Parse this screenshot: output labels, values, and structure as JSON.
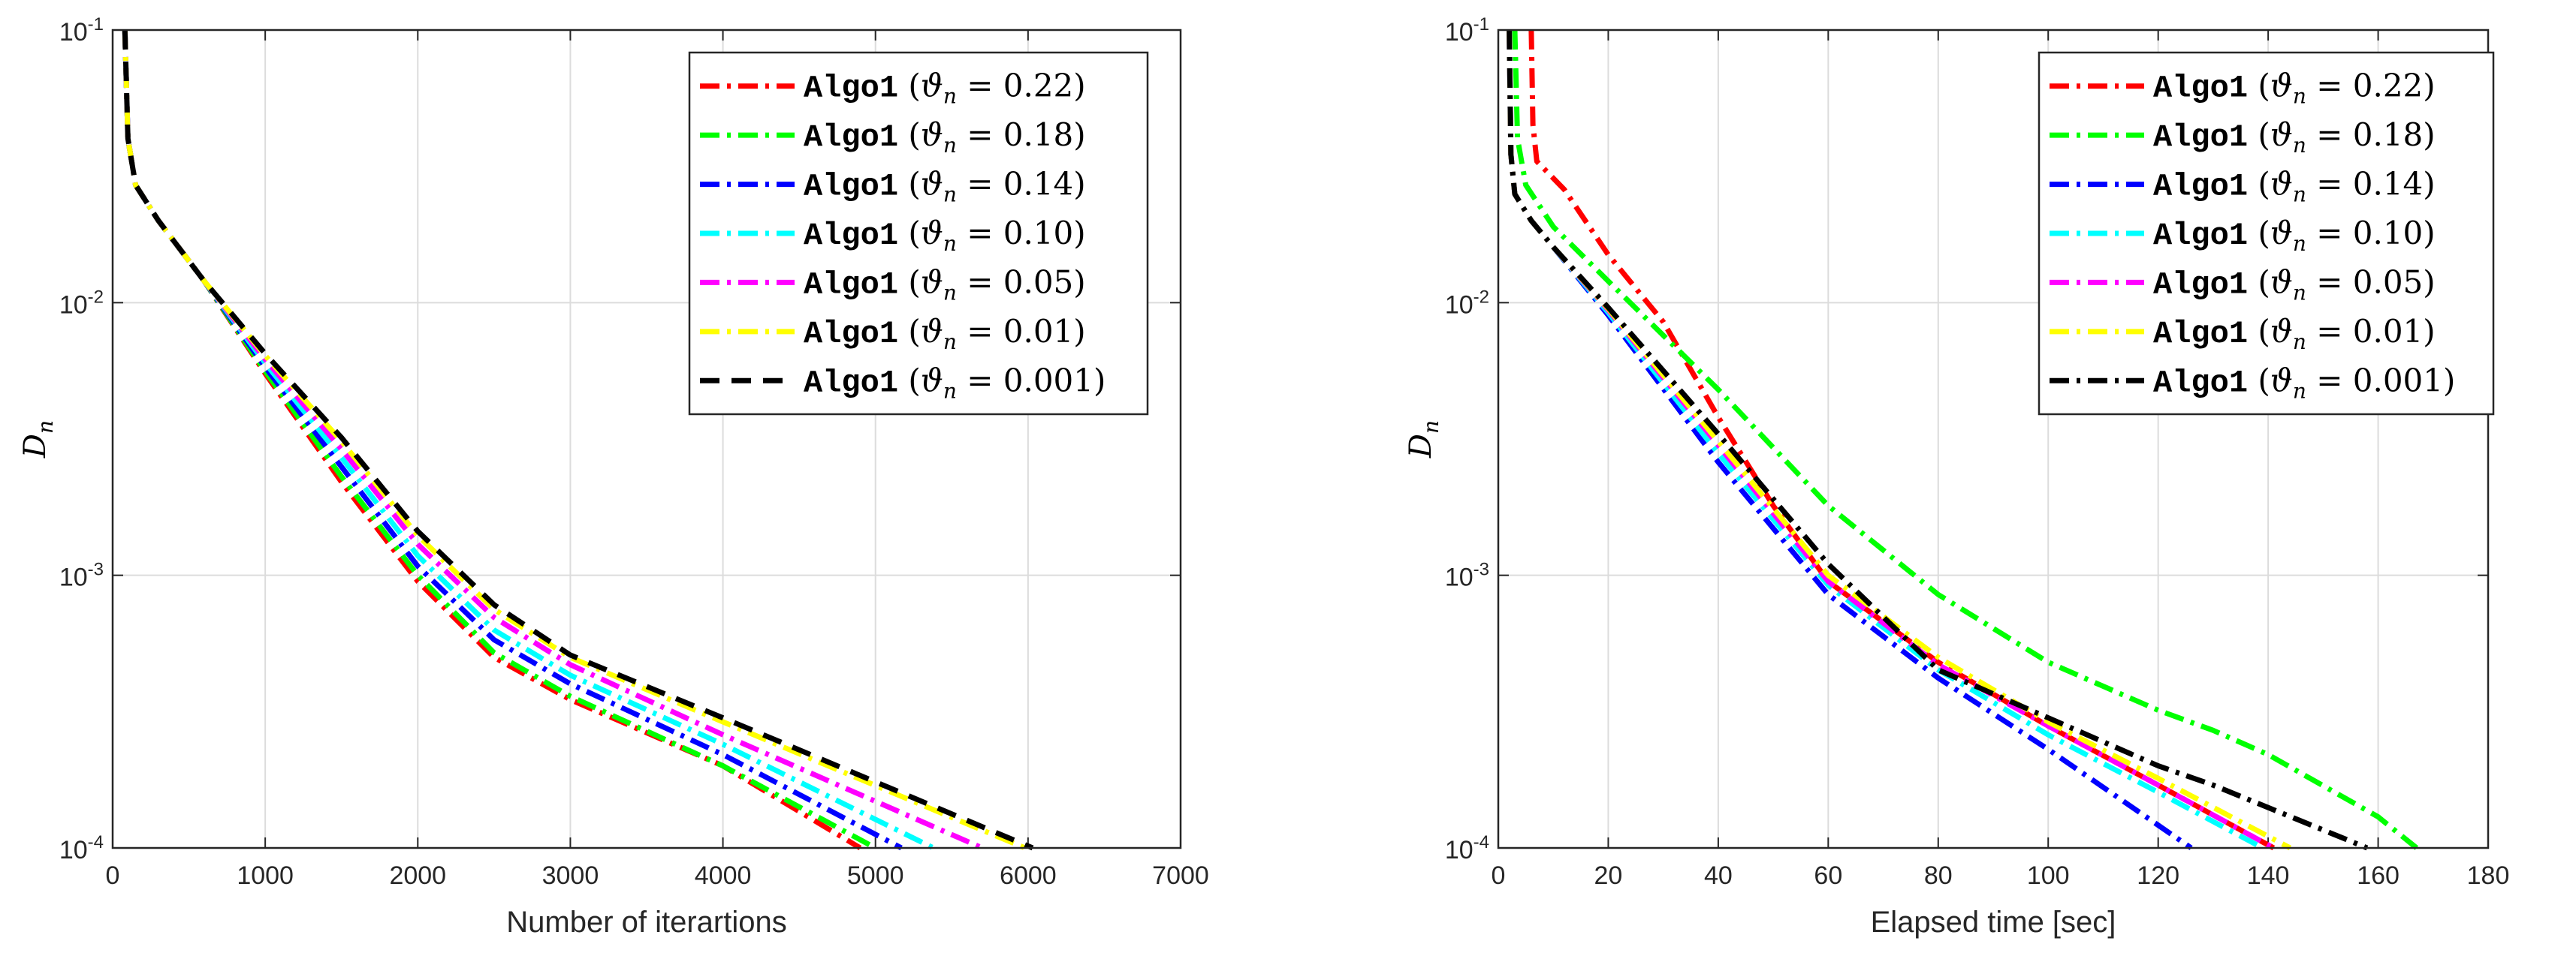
{
  "chart_data": [
    {
      "type": "line",
      "id": "left",
      "xlabel": "Number of iterartions",
      "ylabel": "D",
      "ylabel_sub": "n",
      "xlim": [
        0,
        7000
      ],
      "ylim": [
        0.0001,
        0.1
      ],
      "yscale": "log",
      "grid": true,
      "legend_position": "top-right",
      "xticks": [
        0,
        1000,
        2000,
        3000,
        4000,
        5000,
        6000,
        7000
      ],
      "yticks": [
        {
          "value": 0.1,
          "base": "10",
          "exp": "-1"
        },
        {
          "value": 0.01,
          "base": "10",
          "exp": "-2"
        },
        {
          "value": 0.001,
          "base": "10",
          "exp": "-3"
        },
        {
          "value": 0.0001,
          "base": "10",
          "exp": "-4"
        }
      ],
      "series": [
        {
          "name": "Algo1",
          "theta": "0.22",
          "color": "#ff0000",
          "dash": "dashdot",
          "x": [
            80,
            100,
            150,
            300,
            600,
            1000,
            1500,
            2000,
            2500,
            3000,
            4000,
            4900
          ],
          "y": [
            0.1,
            0.04,
            0.027,
            0.02,
            0.012,
            0.0055,
            0.0022,
            0.00095,
            0.0005,
            0.00035,
            0.0002,
            0.0001
          ]
        },
        {
          "name": "Algo1",
          "theta": "0.18",
          "color": "#00ff00",
          "dash": "dashdot",
          "x": [
            80,
            100,
            150,
            300,
            600,
            1000,
            1500,
            2000,
            2500,
            3000,
            4000,
            5000
          ],
          "y": [
            0.1,
            0.04,
            0.027,
            0.02,
            0.012,
            0.0056,
            0.0023,
            0.001,
            0.00052,
            0.00036,
            0.0002,
            0.0001
          ]
        },
        {
          "name": "Algo1",
          "theta": "0.14",
          "color": "#0000ff",
          "dash": "dashdot",
          "x": [
            80,
            100,
            150,
            300,
            600,
            1000,
            1500,
            2000,
            2500,
            3000,
            4000,
            5170
          ],
          "y": [
            0.1,
            0.04,
            0.027,
            0.02,
            0.012,
            0.0058,
            0.0025,
            0.00108,
            0.00058,
            0.0004,
            0.00022,
            0.0001
          ]
        },
        {
          "name": "Algo1",
          "theta": "0.10",
          "color": "#00ffff",
          "dash": "dashdot",
          "x": [
            80,
            100,
            150,
            300,
            600,
            1000,
            1500,
            2000,
            2500,
            3000,
            4000,
            5380
          ],
          "y": [
            0.1,
            0.04,
            0.027,
            0.02,
            0.012,
            0.006,
            0.0027,
            0.00118,
            0.00063,
            0.00043,
            0.00024,
            0.0001
          ]
        },
        {
          "name": "Algo1",
          "theta": "0.05",
          "color": "#ff00ff",
          "dash": "dashdot",
          "x": [
            80,
            100,
            150,
            300,
            600,
            1000,
            1500,
            2000,
            2500,
            3000,
            4000,
            5700
          ],
          "y": [
            0.1,
            0.04,
            0.027,
            0.02,
            0.012,
            0.0062,
            0.0029,
            0.0013,
            0.0007,
            0.00047,
            0.00026,
            0.0001
          ]
        },
        {
          "name": "Algo1",
          "theta": "0.01",
          "color": "#ffff00",
          "dash": "dashdot",
          "x": [
            80,
            100,
            150,
            300,
            600,
            1000,
            1500,
            2000,
            2500,
            3000,
            4000,
            5980
          ],
          "y": [
            0.1,
            0.04,
            0.027,
            0.02,
            0.012,
            0.0064,
            0.0031,
            0.0014,
            0.00075,
            0.0005,
            0.00029,
            0.0001
          ]
        },
        {
          "name": "Algo1",
          "theta": "0.001",
          "color": "#000000",
          "dash": "dash",
          "x": [
            80,
            100,
            150,
            300,
            600,
            1000,
            1500,
            2000,
            2500,
            3000,
            4000,
            6030
          ],
          "y": [
            0.1,
            0.04,
            0.027,
            0.02,
            0.012,
            0.0065,
            0.0032,
            0.00145,
            0.00078,
            0.00051,
            0.0003,
            0.0001
          ]
        }
      ]
    },
    {
      "type": "line",
      "id": "right",
      "xlabel": "Elapsed time [sec]",
      "ylabel": "D",
      "ylabel_sub": "n",
      "xlim": [
        0,
        180
      ],
      "ylim": [
        0.0001,
        0.1
      ],
      "yscale": "log",
      "grid": true,
      "legend_position": "top-right",
      "xticks": [
        0,
        20,
        40,
        60,
        80,
        100,
        120,
        140,
        160,
        180
      ],
      "yticks": [
        {
          "value": 0.1,
          "base": "10",
          "exp": "-1"
        },
        {
          "value": 0.01,
          "base": "10",
          "exp": "-2"
        },
        {
          "value": 0.001,
          "base": "10",
          "exp": "-3"
        },
        {
          "value": 0.0001,
          "base": "10",
          "exp": "-4"
        }
      ],
      "series": [
        {
          "name": "Algo1",
          "theta": "0.22",
          "color": "#ff0000",
          "dash": "dashdot",
          "x": [
            6,
            6.3,
            7,
            12,
            20,
            30,
            40,
            50,
            60,
            80,
            100,
            120,
            141
          ],
          "y": [
            0.1,
            0.045,
            0.033,
            0.026,
            0.015,
            0.0085,
            0.0038,
            0.0018,
            0.00095,
            0.00048,
            0.00028,
            0.00017,
            0.0001
          ]
        },
        {
          "name": "Algo1",
          "theta": "0.18",
          "color": "#00ff00",
          "dash": "dashdot",
          "x": [
            3,
            3.5,
            5,
            10,
            20,
            40,
            60,
            80,
            100,
            120,
            130,
            140,
            160,
            167
          ],
          "y": [
            0.1,
            0.04,
            0.027,
            0.019,
            0.012,
            0.0048,
            0.0018,
            0.00085,
            0.00048,
            0.00032,
            0.00027,
            0.00022,
            0.00013,
            0.0001
          ]
        },
        {
          "name": "Algo1",
          "theta": "0.14",
          "color": "#0000ff",
          "dash": "dashdot",
          "x": [
            2,
            2.3,
            3,
            6,
            10,
            20,
            40,
            60,
            80,
            100,
            126
          ],
          "y": [
            0.1,
            0.035,
            0.025,
            0.02,
            0.016,
            0.009,
            0.0026,
            0.00085,
            0.00042,
            0.00023,
            0.0001
          ]
        },
        {
          "name": "Algo1",
          "theta": "0.10",
          "color": "#00ffff",
          "dash": "dashdot",
          "x": [
            2,
            2.3,
            3,
            6,
            10,
            20,
            40,
            60,
            80,
            100,
            120,
            139
          ],
          "y": [
            0.1,
            0.035,
            0.025,
            0.02,
            0.016,
            0.0092,
            0.0028,
            0.00092,
            0.00045,
            0.00026,
            0.00016,
            0.0001
          ]
        },
        {
          "name": "Algo1",
          "theta": "0.05",
          "color": "#ff00ff",
          "dash": "dashdot",
          "x": [
            2,
            2.3,
            3,
            6,
            10,
            20,
            40,
            60,
            80,
            100,
            120,
            141
          ],
          "y": [
            0.1,
            0.035,
            0.025,
            0.02,
            0.016,
            0.0094,
            0.003,
            0.00095,
            0.00047,
            0.00028,
            0.00017,
            0.0001
          ]
        },
        {
          "name": "Algo1",
          "theta": "0.01",
          "color": "#ffff00",
          "dash": "dashdot",
          "x": [
            2,
            2.3,
            3,
            6,
            10,
            20,
            40,
            60,
            80,
            100,
            120,
            144
          ],
          "y": [
            0.1,
            0.035,
            0.025,
            0.02,
            0.016,
            0.0095,
            0.0031,
            0.001,
            0.0005,
            0.00029,
            0.00018,
            0.0001
          ]
        },
        {
          "name": "Algo1",
          "theta": "0.001",
          "color": "#000000",
          "dash": "dashdot",
          "x": [
            2,
            2.3,
            3,
            6,
            10,
            20,
            40,
            60,
            80,
            100,
            120,
            130,
            158
          ],
          "y": [
            0.1,
            0.035,
            0.025,
            0.02,
            0.016,
            0.0096,
            0.0033,
            0.0011,
            0.00045,
            0.0003,
            0.0002,
            0.00017,
            0.0001
          ]
        }
      ]
    }
  ]
}
